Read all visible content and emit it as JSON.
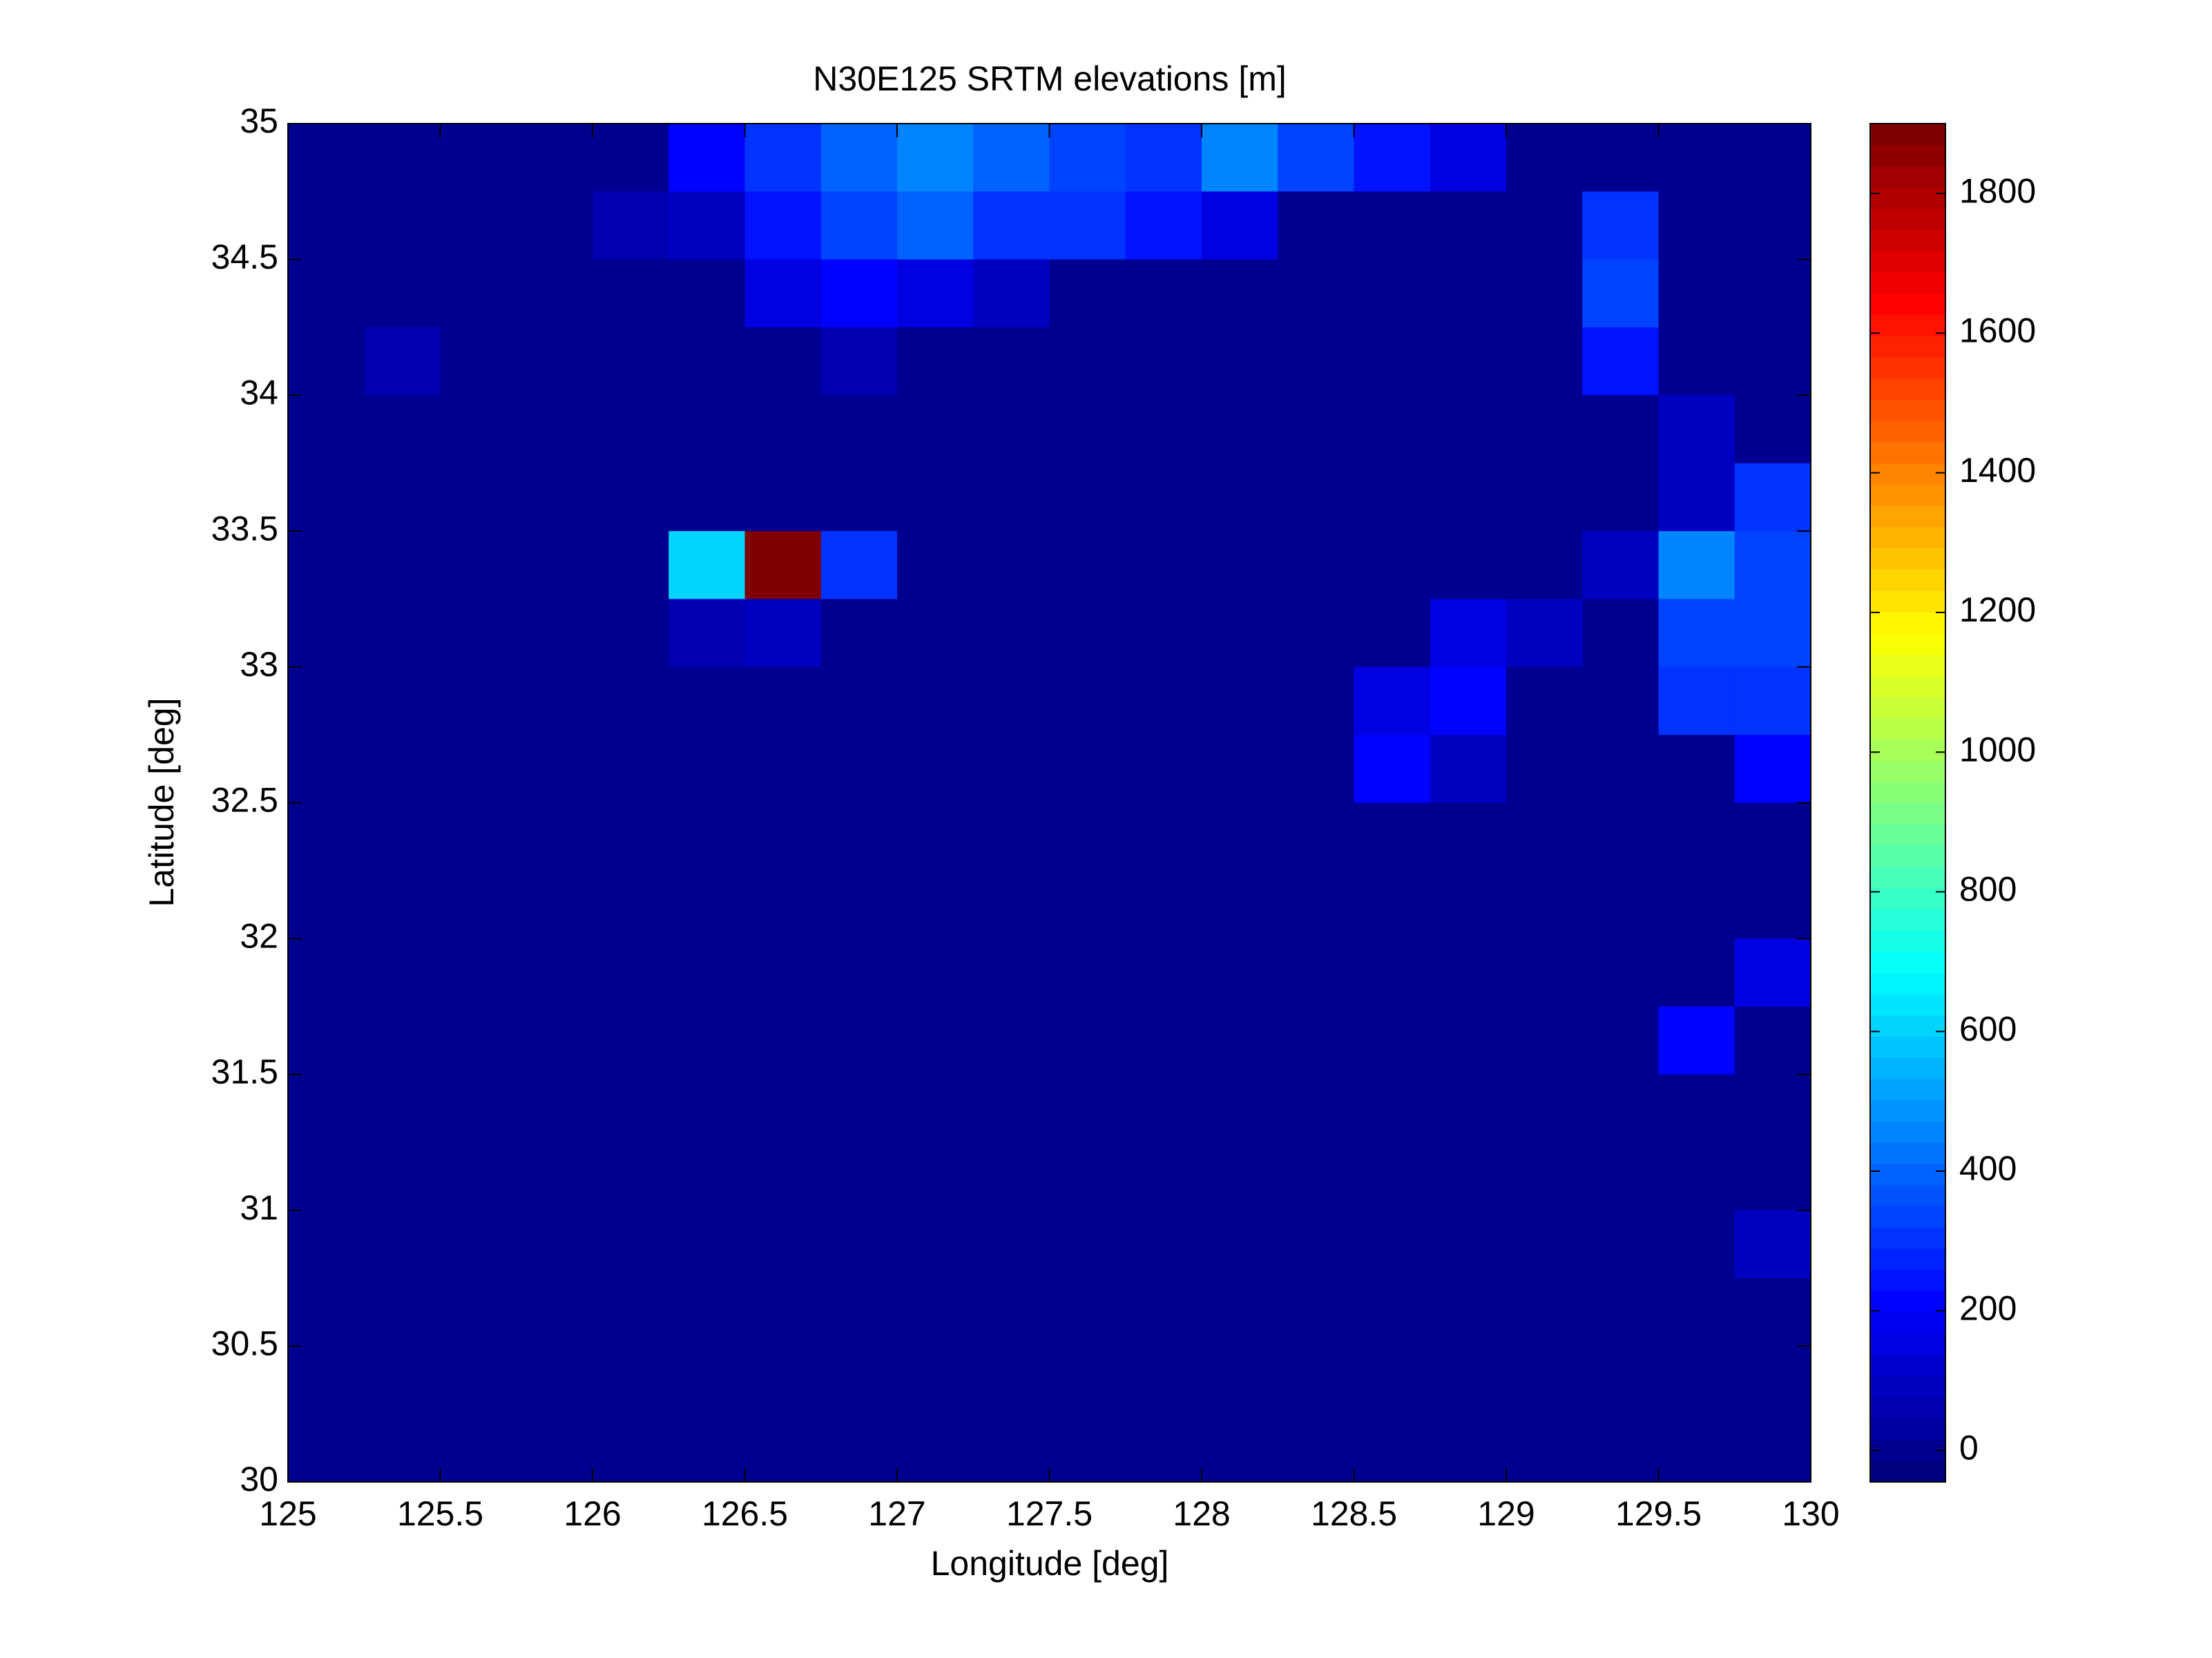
{
  "chart_data": {
    "type": "heatmap",
    "title": "N30E125 SRTM elevations [m]",
    "xlabel": "Longitude [deg]",
    "ylabel": "Latitude [deg]",
    "xlim": [
      125,
      130
    ],
    "ylim": [
      30,
      35
    ],
    "xticks": [
      125,
      125.5,
      126,
      126.5,
      127,
      127.5,
      128,
      128.5,
      129,
      129.5,
      130
    ],
    "yticks": [
      30,
      30.5,
      31,
      31.5,
      32,
      32.5,
      33,
      33.5,
      34,
      34.5,
      35
    ],
    "colormap": "jet",
    "clim": [
      -45,
      1900
    ],
    "cticks": [
      0,
      200,
      400,
      600,
      800,
      1000,
      1200,
      1400,
      1600,
      1800
    ],
    "z": [
      [
        0,
        0,
        0,
        0,
        0,
        200,
        300,
        400,
        450,
        400,
        350,
        300,
        450,
        350,
        250,
        150,
        0,
        0,
        0,
        0
      ],
      [
        0,
        0,
        0,
        0,
        50,
        100,
        250,
        350,
        400,
        300,
        300,
        250,
        150,
        0,
        0,
        0,
        0,
        300,
        0,
        0
      ],
      [
        0,
        0,
        0,
        0,
        0,
        0,
        150,
        200,
        150,
        100,
        0,
        0,
        0,
        0,
        0,
        0,
        0,
        350,
        0,
        0
      ],
      [
        0,
        50,
        0,
        0,
        0,
        0,
        0,
        50,
        0,
        0,
        0,
        0,
        0,
        0,
        0,
        0,
        0,
        250,
        0,
        0
      ],
      [
        0,
        0,
        0,
        0,
        0,
        0,
        0,
        0,
        0,
        0,
        0,
        0,
        0,
        0,
        0,
        0,
        0,
        0,
        100,
        0
      ],
      [
        0,
        0,
        0,
        0,
        0,
        0,
        0,
        0,
        0,
        0,
        0,
        0,
        0,
        0,
        0,
        0,
        0,
        0,
        100,
        300
      ],
      [
        0,
        0,
        0,
        0,
        0,
        600,
        1900,
        300,
        0,
        0,
        0,
        0,
        0,
        0,
        0,
        0,
        0,
        100,
        450,
        350
      ],
      [
        0,
        0,
        0,
        0,
        0,
        50,
        100,
        0,
        0,
        0,
        0,
        0,
        0,
        0,
        0,
        150,
        100,
        0,
        350,
        350
      ],
      [
        0,
        0,
        0,
        0,
        0,
        0,
        0,
        0,
        0,
        0,
        0,
        0,
        0,
        0,
        150,
        200,
        0,
        0,
        300,
        300
      ],
      [
        0,
        0,
        0,
        0,
        0,
        0,
        0,
        0,
        0,
        0,
        0,
        0,
        0,
        0,
        200,
        100,
        0,
        0,
        0,
        200
      ],
      [
        0,
        0,
        0,
        0,
        0,
        0,
        0,
        0,
        0,
        0,
        0,
        0,
        0,
        0,
        0,
        0,
        0,
        0,
        0,
        0
      ],
      [
        0,
        0,
        0,
        0,
        0,
        0,
        0,
        0,
        0,
        0,
        0,
        0,
        0,
        0,
        0,
        0,
        0,
        0,
        0,
        0
      ],
      [
        0,
        0,
        0,
        0,
        0,
        0,
        0,
        0,
        0,
        0,
        0,
        0,
        0,
        0,
        0,
        0,
        0,
        0,
        0,
        150
      ],
      [
        0,
        0,
        0,
        0,
        0,
        0,
        0,
        0,
        0,
        0,
        0,
        0,
        0,
        0,
        0,
        0,
        0,
        0,
        200,
        0
      ],
      [
        0,
        0,
        0,
        0,
        0,
        0,
        0,
        0,
        0,
        0,
        0,
        0,
        0,
        0,
        0,
        0,
        0,
        0,
        0,
        0
      ],
      [
        0,
        0,
        0,
        0,
        0,
        0,
        0,
        0,
        0,
        0,
        0,
        0,
        0,
        0,
        0,
        0,
        0,
        0,
        0,
        0
      ],
      [
        0,
        0,
        0,
        0,
        0,
        0,
        0,
        0,
        0,
        0,
        0,
        0,
        0,
        0,
        0,
        0,
        0,
        0,
        0,
        100
      ],
      [
        0,
        0,
        0,
        0,
        0,
        0,
        0,
        0,
        0,
        0,
        0,
        0,
        0,
        0,
        0,
        0,
        0,
        0,
        0,
        0
      ],
      [
        0,
        0,
        0,
        0,
        0,
        0,
        0,
        0,
        0,
        0,
        0,
        0,
        0,
        0,
        0,
        0,
        0,
        0,
        0,
        0
      ],
      [
        0,
        0,
        0,
        0,
        0,
        0,
        0,
        0,
        0,
        0,
        0,
        0,
        0,
        0,
        0,
        0,
        0,
        0,
        0,
        0
      ]
    ]
  }
}
